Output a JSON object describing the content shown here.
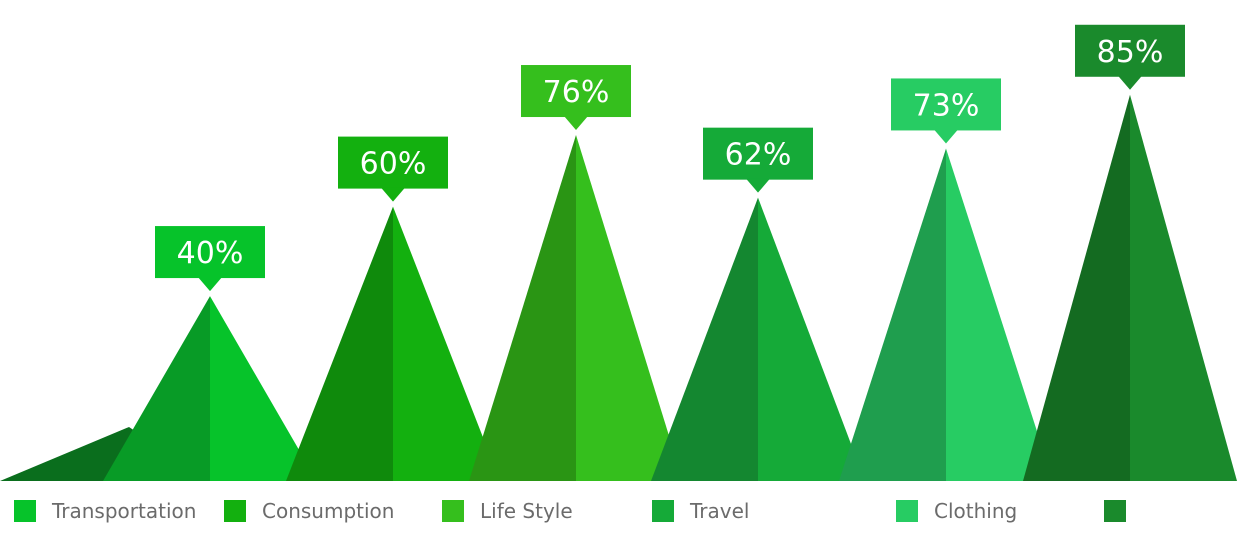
{
  "chart_data": {
    "type": "bar",
    "title": "",
    "xlabel": "",
    "ylabel": "",
    "ylim": [
      0,
      100
    ],
    "grid": false,
    "legend_position": "bottom",
    "categories": [
      "Transportation",
      "Consumption",
      "Life Style",
      "Travel",
      "Clothing",
      ""
    ],
    "values": [
      40,
      60,
      76,
      62,
      73,
      85
    ],
    "value_labels": [
      "40%",
      "60%",
      "76%",
      "62%",
      "73%",
      "85%"
    ],
    "colors": {
      "face": [
        "#06c32a",
        "#13b00f",
        "#35bf1d",
        "#15aa38",
        "#27cc63",
        "#1a8a2c"
      ],
      "shade": [
        "#089b26",
        "#0f8a0c",
        "#2a9514",
        "#148730",
        "#1f9e4e",
        "#146b21"
      ],
      "base": [
        "#0a6e1d",
        "#0a5e08",
        "#1c5e12",
        "#0f5c23",
        "#176a38",
        "#0f4a18"
      ]
    }
  }
}
